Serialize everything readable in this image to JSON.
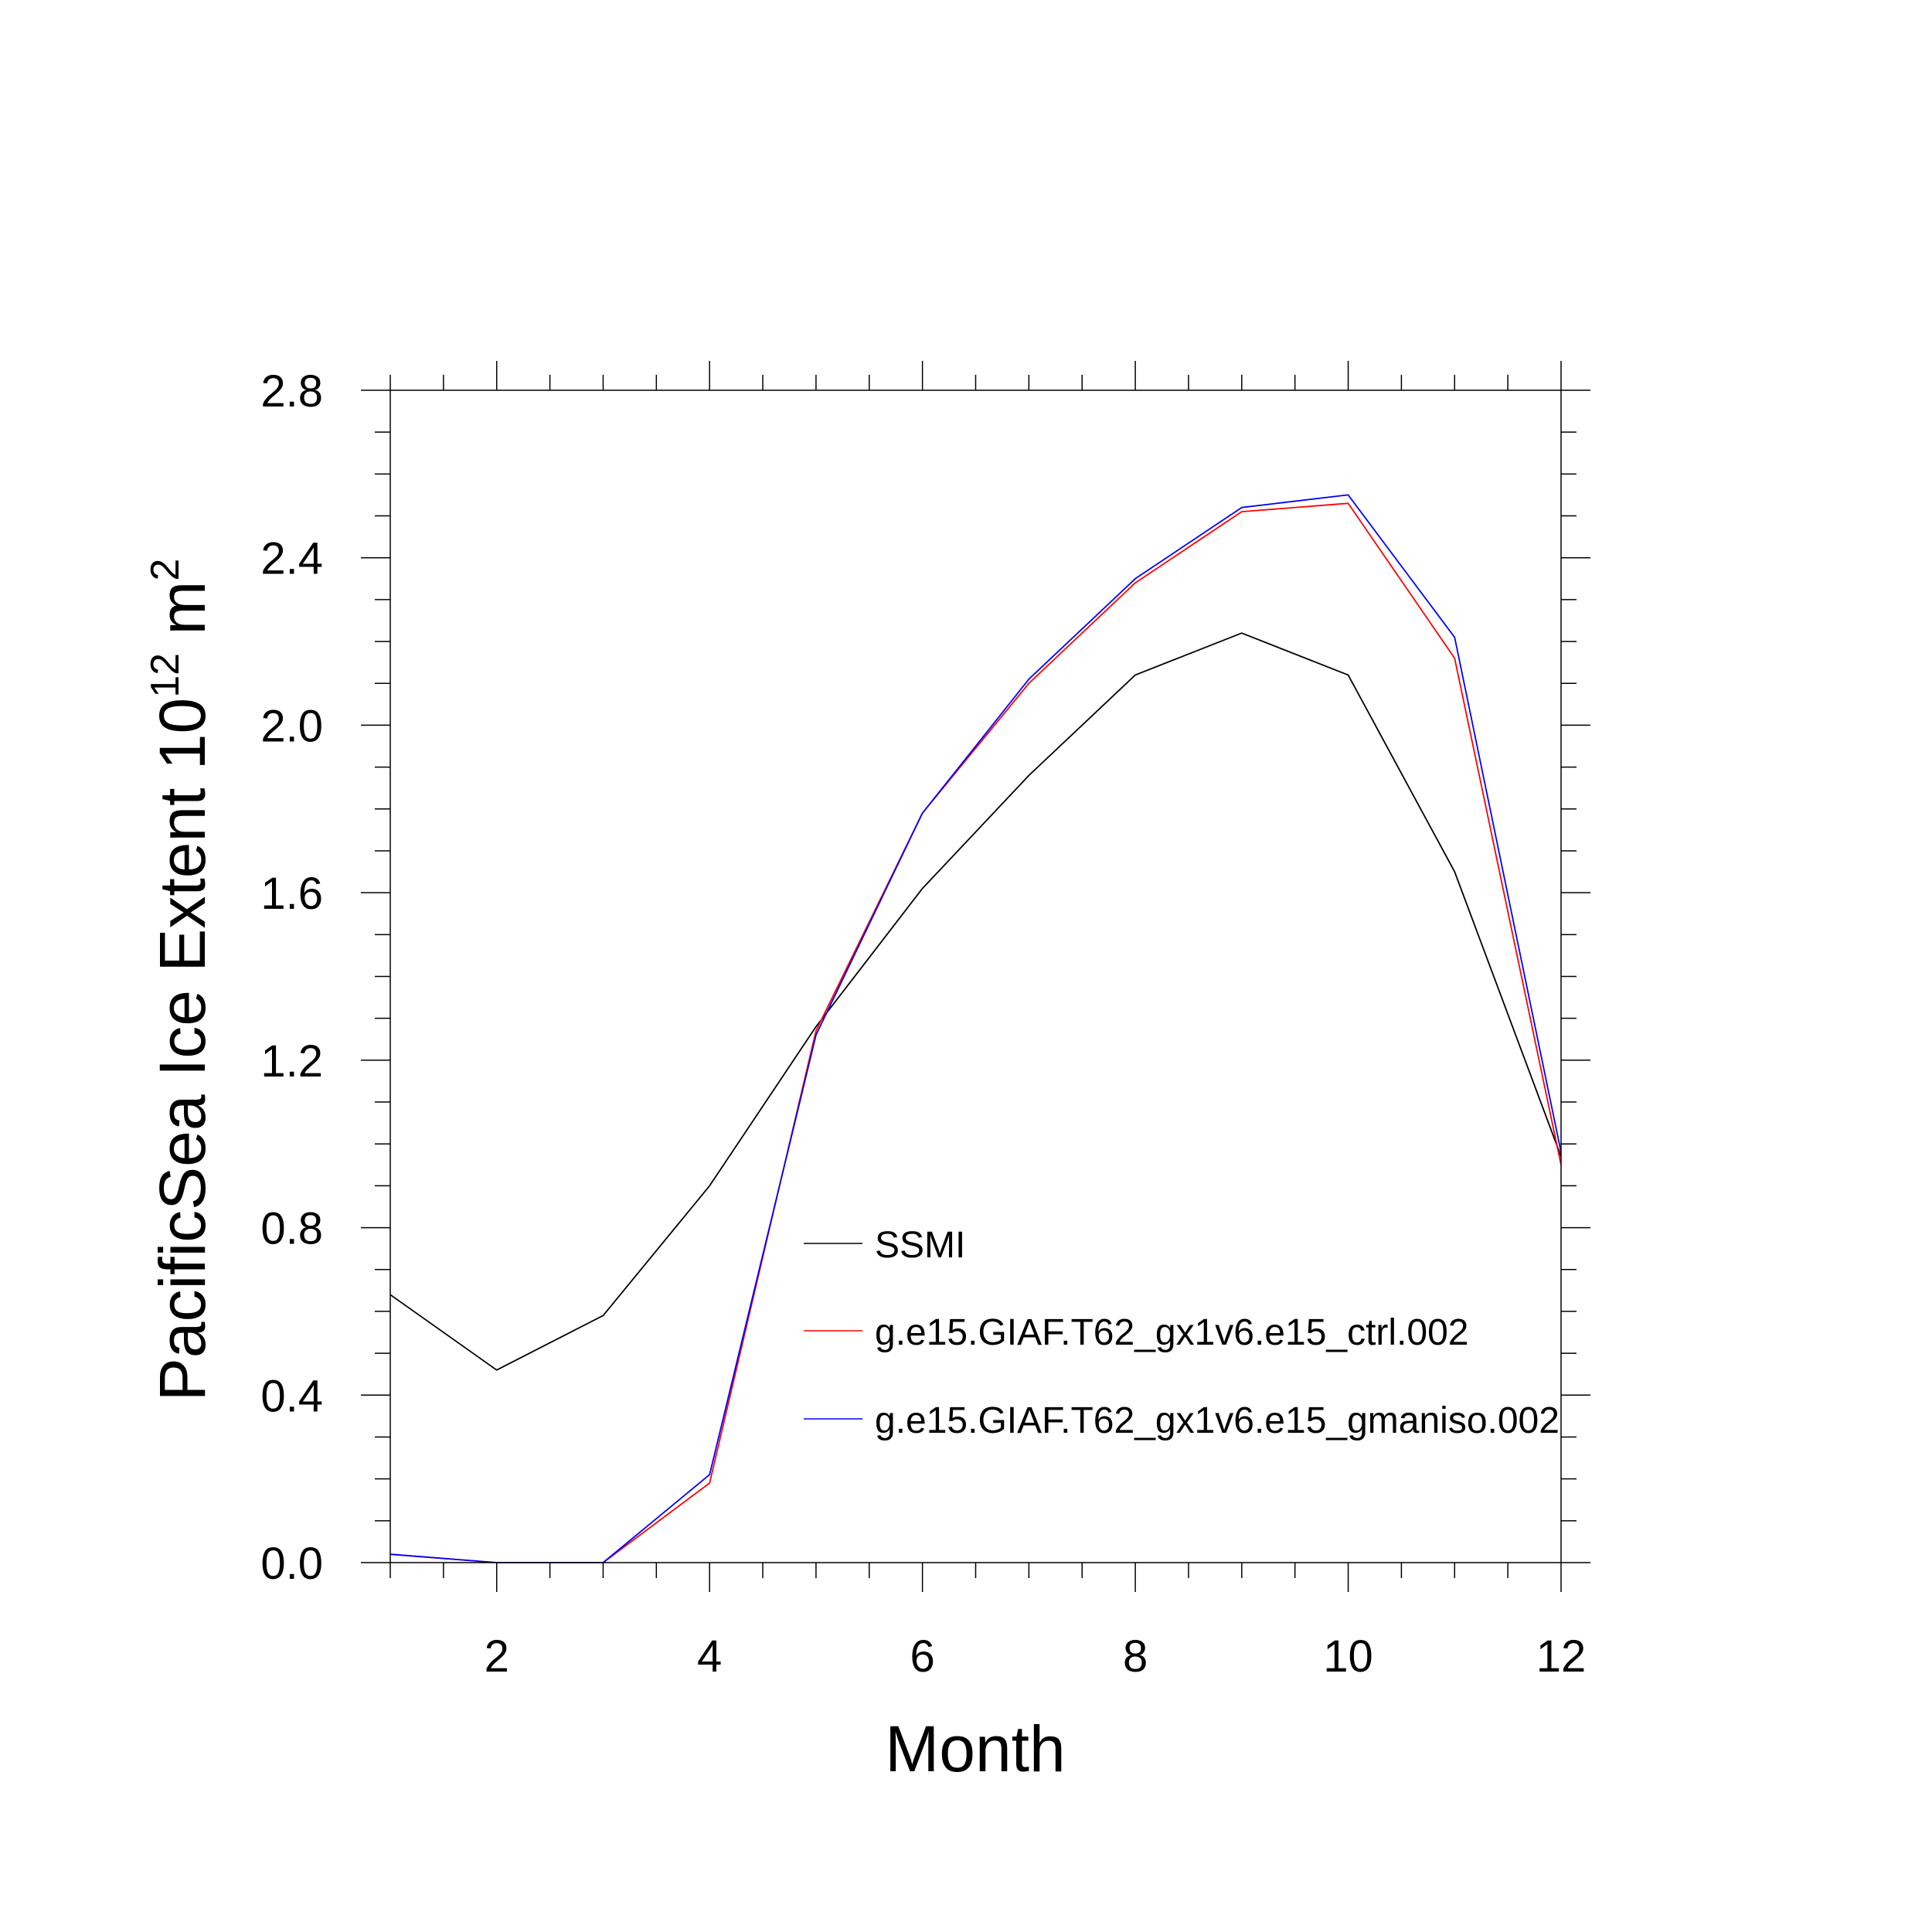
{
  "chart_data": {
    "type": "line",
    "xlabel": "Month",
    "ylabel_main": "PacificSea Ice Extent 10",
    "ylabel_exp": "12",
    "ylabel_unit": "m",
    "ylabel_unit_exp": "2",
    "xlim": [
      1,
      12
    ],
    "ylim": [
      0,
      2.8
    ],
    "x": [
      1,
      2,
      3,
      4,
      5,
      6,
      7,
      8,
      9,
      10,
      11,
      12
    ],
    "x_ticks": [
      2,
      4,
      6,
      8,
      10,
      12
    ],
    "x_tick_labels": [
      "2",
      "4",
      "6",
      "8",
      "10",
      "12"
    ],
    "y_ticks": [
      0,
      0.4,
      0.8,
      1.2,
      1.6,
      2.0,
      2.4,
      2.8
    ],
    "y_tick_labels": [
      "0.0",
      "0.4",
      "0.8",
      "1.2",
      "1.6",
      "2.0",
      "2.4",
      "2.8"
    ],
    "legend_position": "center-right",
    "series": [
      {
        "name": "SSMI",
        "color": "#000000",
        "values": [
          0.64,
          0.46,
          0.59,
          0.9,
          1.28,
          1.61,
          1.88,
          2.12,
          2.22,
          2.12,
          1.65,
          0.97
        ]
      },
      {
        "name": "g.e15.GIAF.T62_gx1v6.e15_ctrl.002",
        "color": "#ff0000",
        "values": [
          0.02,
          0.0,
          0.0,
          0.19,
          1.27,
          1.79,
          2.1,
          2.34,
          2.51,
          2.53,
          2.16,
          0.95
        ]
      },
      {
        "name": "g.e15.GIAF.T62_gx1v6.e15_gmaniso.002",
        "color": "#0000ff",
        "values": [
          0.02,
          0.0,
          0.0,
          0.21,
          1.26,
          1.79,
          2.11,
          2.35,
          2.52,
          2.55,
          2.21,
          0.98
        ]
      }
    ]
  }
}
